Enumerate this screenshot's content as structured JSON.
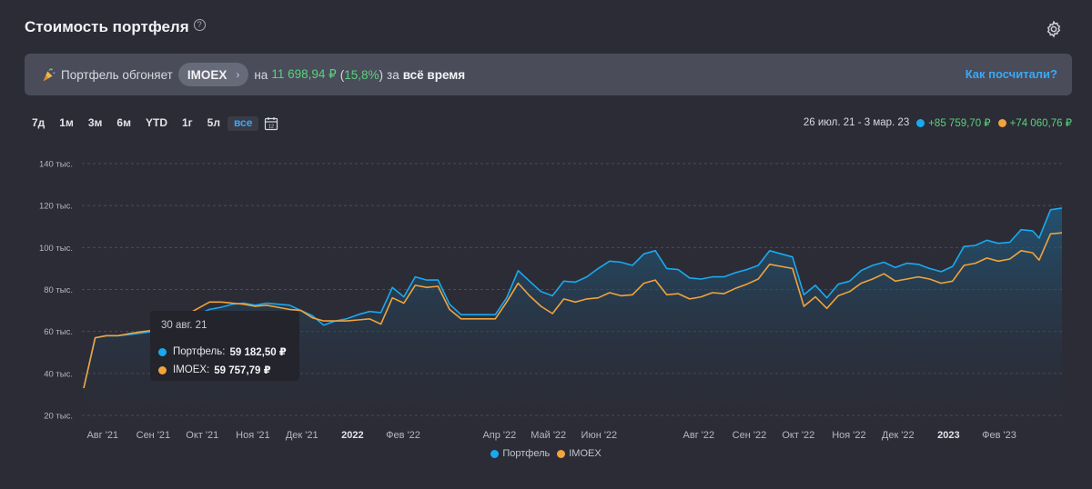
{
  "header": {
    "title": "Стоимость портфеля",
    "help_icon": "?"
  },
  "banner": {
    "prefix": "Портфель обгоняет",
    "benchmark": "IMOEX",
    "on": "на",
    "amount": "11 698,94 ₽",
    "paren_open": "(",
    "percent": "15,8%",
    "paren_close": ")",
    "for": "за",
    "period": "всё время",
    "link": "Как посчитали?"
  },
  "periods": [
    "7д",
    "1м",
    "3м",
    "6м",
    "YTD",
    "1г",
    "5л",
    "все"
  ],
  "active_period": "все",
  "range": {
    "dates": "26 июл. 21 - 3 мар. 23",
    "portfolio_change": "+85 759,70 ₽",
    "imoex_change": "+74 060,76 ₽"
  },
  "tooltip": {
    "date": "30 авг. 21",
    "rows": [
      {
        "name": "Портфель:",
        "value": "59 182,50 ₽"
      },
      {
        "name": "IMOEX:",
        "value": "59 757,79 ₽"
      }
    ]
  },
  "colors": {
    "portfolio": "#1aa9f0",
    "imoex": "#f1a33c",
    "accent": "#3aa9f5",
    "positive": "#5bd17b"
  },
  "chart_data": {
    "type": "line",
    "ylim": [
      20000,
      140000
    ],
    "y_ticks": [
      {
        "value": 20000,
        "label": "20 тыс."
      },
      {
        "value": 40000,
        "label": "40 тыс."
      },
      {
        "value": 60000,
        "label": "60 тыс."
      },
      {
        "value": 80000,
        "label": "80 тыс."
      },
      {
        "value": 100000,
        "label": "100 тыс."
      },
      {
        "value": 120000,
        "label": "120 тыс."
      },
      {
        "value": 140000,
        "label": "140 тыс."
      }
    ],
    "x_range": [
      "2021-07-26",
      "2023-03-03"
    ],
    "x_ticks": [
      {
        "date": "2021-08-01",
        "label": "Авг '21",
        "bold": false
      },
      {
        "date": "2021-09-01",
        "label": "Сен '21",
        "bold": false
      },
      {
        "date": "2021-10-01",
        "label": "Окт '21",
        "bold": false
      },
      {
        "date": "2021-11-01",
        "label": "Ноя '21",
        "bold": false
      },
      {
        "date": "2021-12-01",
        "label": "Дек '21",
        "bold": false
      },
      {
        "date": "2022-01-01",
        "label": "2022",
        "bold": true
      },
      {
        "date": "2022-02-01",
        "label": "Фев '22",
        "bold": false
      },
      {
        "date": "2022-04-01",
        "label": "Апр '22",
        "bold": false
      },
      {
        "date": "2022-05-01",
        "label": "Май '22",
        "bold": false
      },
      {
        "date": "2022-06-01",
        "label": "Июн '22",
        "bold": false
      },
      {
        "date": "2022-08-01",
        "label": "Авг '22",
        "bold": false
      },
      {
        "date": "2022-09-01",
        "label": "Сен '22",
        "bold": false
      },
      {
        "date": "2022-10-01",
        "label": "Окт '22",
        "bold": false
      },
      {
        "date": "2022-11-01",
        "label": "Ноя '22",
        "bold": false
      },
      {
        "date": "2022-12-01",
        "label": "Дек '22",
        "bold": false
      },
      {
        "date": "2023-01-01",
        "label": "2023",
        "bold": true
      },
      {
        "date": "2023-02-01",
        "label": "Фев '23",
        "bold": false
      }
    ],
    "grid": true,
    "legend": "bottom-center",
    "series": [
      {
        "name": "Портфель",
        "color": "#1aa9f0",
        "points": [
          [
            "2021-07-26",
            33000
          ],
          [
            "2021-08-02",
            57000
          ],
          [
            "2021-08-09",
            58000
          ],
          [
            "2021-08-16",
            58000
          ],
          [
            "2021-08-23",
            58500
          ],
          [
            "2021-08-30",
            59200
          ],
          [
            "2021-09-06",
            60000
          ],
          [
            "2021-09-13",
            63000
          ],
          [
            "2021-09-20",
            66000
          ],
          [
            "2021-09-27",
            66500
          ],
          [
            "2021-10-04",
            68000
          ],
          [
            "2021-10-11",
            70500
          ],
          [
            "2021-10-18",
            71500
          ],
          [
            "2021-10-25",
            73000
          ],
          [
            "2021-11-01",
            73500
          ],
          [
            "2021-11-08",
            72500
          ],
          [
            "2021-11-15",
            73500
          ],
          [
            "2021-11-22",
            73000
          ],
          [
            "2021-11-29",
            72500
          ],
          [
            "2021-12-06",
            70000
          ],
          [
            "2021-12-13",
            67500
          ],
          [
            "2021-12-20",
            63000
          ],
          [
            "2021-12-27",
            65000
          ],
          [
            "2022-01-03",
            66000
          ],
          [
            "2022-01-10",
            68000
          ],
          [
            "2022-01-17",
            69500
          ],
          [
            "2022-01-24",
            69000
          ],
          [
            "2022-01-31",
            81000
          ],
          [
            "2022-02-07",
            76500
          ],
          [
            "2022-02-14",
            86000
          ],
          [
            "2022-02-21",
            84500
          ],
          [
            "2022-02-28",
            84500
          ],
          [
            "2022-03-07",
            73000
          ],
          [
            "2022-03-14",
            68000
          ],
          [
            "2022-03-21",
            68000
          ],
          [
            "2022-03-28",
            68000
          ],
          [
            "2022-04-04",
            68000
          ],
          [
            "2022-04-11",
            76000
          ],
          [
            "2022-04-18",
            89000
          ],
          [
            "2022-04-25",
            84000
          ],
          [
            "2022-05-02",
            79000
          ],
          [
            "2022-05-09",
            77000
          ],
          [
            "2022-05-16",
            84000
          ],
          [
            "2022-05-23",
            83500
          ],
          [
            "2022-05-30",
            86000
          ],
          [
            "2022-06-06",
            90000
          ],
          [
            "2022-06-13",
            93500
          ],
          [
            "2022-06-20",
            93000
          ],
          [
            "2022-06-27",
            91500
          ],
          [
            "2022-07-04",
            97000
          ],
          [
            "2022-07-11",
            98500
          ],
          [
            "2022-07-18",
            90000
          ],
          [
            "2022-07-25",
            89500
          ],
          [
            "2022-08-01",
            85500
          ],
          [
            "2022-08-08",
            85000
          ],
          [
            "2022-08-15",
            86000
          ],
          [
            "2022-08-22",
            86000
          ],
          [
            "2022-08-29",
            88000
          ],
          [
            "2022-09-05",
            89500
          ],
          [
            "2022-09-12",
            91500
          ],
          [
            "2022-09-19",
            98500
          ],
          [
            "2022-09-26",
            97000
          ],
          [
            "2022-10-03",
            95500
          ],
          [
            "2022-10-10",
            77500
          ],
          [
            "2022-10-17",
            82000
          ],
          [
            "2022-10-24",
            76000
          ],
          [
            "2022-10-31",
            82500
          ],
          [
            "2022-11-07",
            84000
          ],
          [
            "2022-11-14",
            89000
          ],
          [
            "2022-11-21",
            91500
          ],
          [
            "2022-11-28",
            93000
          ],
          [
            "2022-12-05",
            90500
          ],
          [
            "2022-12-12",
            92500
          ],
          [
            "2022-12-19",
            92000
          ],
          [
            "2022-12-26",
            90000
          ],
          [
            "2023-01-02",
            88500
          ],
          [
            "2023-01-09",
            91000
          ],
          [
            "2023-01-16",
            100500
          ],
          [
            "2023-01-23",
            101000
          ],
          [
            "2023-01-30",
            103500
          ],
          [
            "2023-02-06",
            102000
          ],
          [
            "2023-02-13",
            102500
          ],
          [
            "2023-02-20",
            108500
          ],
          [
            "2023-02-27",
            108000
          ],
          [
            "2023-03-03",
            104500
          ],
          [
            "2023-03-10",
            118000
          ],
          [
            "2023-03-17",
            118800
          ]
        ]
      },
      {
        "name": "IMOEX",
        "color": "#f1a33c",
        "points": [
          [
            "2021-07-26",
            33000
          ],
          [
            "2021-08-02",
            57000
          ],
          [
            "2021-08-09",
            58000
          ],
          [
            "2021-08-16",
            58000
          ],
          [
            "2021-08-23",
            59000
          ],
          [
            "2021-08-30",
            59800
          ],
          [
            "2021-09-06",
            60500
          ],
          [
            "2021-09-13",
            64000
          ],
          [
            "2021-09-20",
            67000
          ],
          [
            "2021-09-27",
            68000
          ],
          [
            "2021-10-04",
            71000
          ],
          [
            "2021-10-11",
            74000
          ],
          [
            "2021-10-18",
            74000
          ],
          [
            "2021-10-25",
            73500
          ],
          [
            "2021-11-01",
            73000
          ],
          [
            "2021-11-08",
            72000
          ],
          [
            "2021-11-15",
            72500
          ],
          [
            "2021-11-22",
            71500
          ],
          [
            "2021-11-29",
            70500
          ],
          [
            "2021-12-06",
            70000
          ],
          [
            "2021-12-13",
            66500
          ],
          [
            "2021-12-20",
            65000
          ],
          [
            "2021-12-27",
            65000
          ],
          [
            "2022-01-03",
            65000
          ],
          [
            "2022-01-10",
            65500
          ],
          [
            "2022-01-17",
            66000
          ],
          [
            "2022-01-24",
            63500
          ],
          [
            "2022-01-31",
            76000
          ],
          [
            "2022-02-07",
            73500
          ],
          [
            "2022-02-14",
            82000
          ],
          [
            "2022-02-21",
            81000
          ],
          [
            "2022-02-28",
            81500
          ],
          [
            "2022-03-07",
            70500
          ],
          [
            "2022-03-14",
            66000
          ],
          [
            "2022-03-21",
            66000
          ],
          [
            "2022-03-28",
            66000
          ],
          [
            "2022-04-04",
            66000
          ],
          [
            "2022-04-11",
            74000
          ],
          [
            "2022-04-18",
            83000
          ],
          [
            "2022-04-25",
            77000
          ],
          [
            "2022-05-02",
            72000
          ],
          [
            "2022-05-09",
            68500
          ],
          [
            "2022-05-16",
            75500
          ],
          [
            "2022-05-23",
            74000
          ],
          [
            "2022-05-30",
            75500
          ],
          [
            "2022-06-06",
            76000
          ],
          [
            "2022-06-13",
            78500
          ],
          [
            "2022-06-20",
            77000
          ],
          [
            "2022-06-27",
            77500
          ],
          [
            "2022-07-04",
            83000
          ],
          [
            "2022-07-11",
            84500
          ],
          [
            "2022-07-18",
            77500
          ],
          [
            "2022-07-25",
            78000
          ],
          [
            "2022-08-01",
            75500
          ],
          [
            "2022-08-08",
            76500
          ],
          [
            "2022-08-15",
            78500
          ],
          [
            "2022-08-22",
            78000
          ],
          [
            "2022-08-29",
            80500
          ],
          [
            "2022-09-05",
            82500
          ],
          [
            "2022-09-12",
            85000
          ],
          [
            "2022-09-19",
            92000
          ],
          [
            "2022-09-26",
            91000
          ],
          [
            "2022-10-03",
            90000
          ],
          [
            "2022-10-10",
            72000
          ],
          [
            "2022-10-17",
            76500
          ],
          [
            "2022-10-24",
            71000
          ],
          [
            "2022-10-31",
            77000
          ],
          [
            "2022-11-07",
            79000
          ],
          [
            "2022-11-14",
            83000
          ],
          [
            "2022-11-21",
            85000
          ],
          [
            "2022-11-28",
            87500
          ],
          [
            "2022-12-05",
            84000
          ],
          [
            "2022-12-12",
            85000
          ],
          [
            "2022-12-19",
            86000
          ],
          [
            "2022-12-26",
            85000
          ],
          [
            "2023-01-02",
            83000
          ],
          [
            "2023-01-09",
            84000
          ],
          [
            "2023-01-16",
            91500
          ],
          [
            "2023-01-23",
            92500
          ],
          [
            "2023-01-30",
            95000
          ],
          [
            "2023-02-06",
            93500
          ],
          [
            "2023-02-13",
            94500
          ],
          [
            "2023-02-20",
            98500
          ],
          [
            "2023-02-27",
            97500
          ],
          [
            "2023-03-03",
            94000
          ],
          [
            "2023-03-10",
            106500
          ],
          [
            "2023-03-17",
            107000
          ]
        ]
      }
    ]
  }
}
